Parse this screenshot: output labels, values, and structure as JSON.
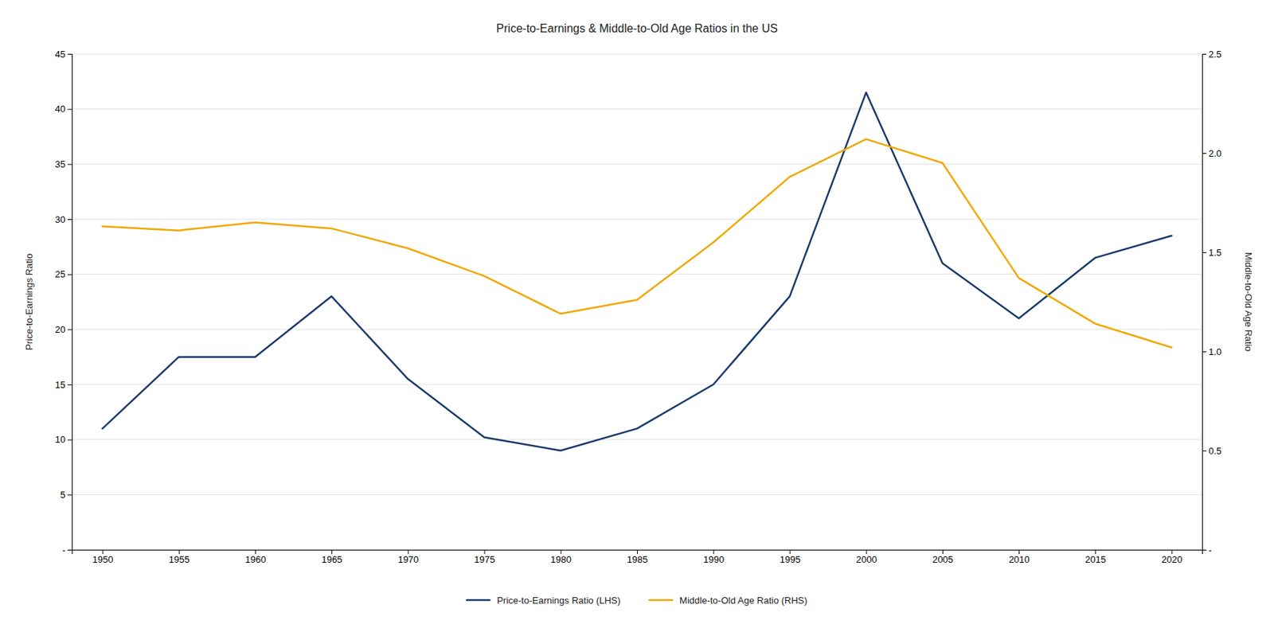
{
  "chart_data": {
    "type": "line",
    "title": "Price-to-Earnings & Middle-to-Old Age Ratios in the US",
    "x": [
      1950,
      1955,
      1960,
      1965,
      1970,
      1975,
      1980,
      1985,
      1990,
      1995,
      2000,
      2005,
      2010,
      2015,
      2020
    ],
    "series": [
      {
        "name": "Price-to-Earnings Ratio (LHS)",
        "color": "#1a3a6b",
        "values": [
          11.0,
          17.5,
          17.5,
          23.0,
          15.5,
          10.2,
          9.0,
          11.0,
          15.0,
          23.0,
          41.5,
          26.0,
          21.0,
          26.5,
          28.5
        ]
      },
      {
        "name": "Middle-to-Old Age Ratio (RHS)",
        "color": "#f0a800",
        "axis": "y2",
        "values": [
          1.63,
          1.61,
          1.65,
          1.62,
          1.52,
          1.38,
          1.19,
          1.26,
          1.55,
          1.88,
          2.07,
          1.95,
          1.37,
          1.14,
          1.02
        ]
      }
    ],
    "ylabel": "Price-to-Earnings Ratio",
    "y2label": "Middle-to-Old Age Ratio",
    "xlim": [
      1948,
      2022
    ],
    "xticks": [
      1950,
      1955,
      1960,
      1965,
      1970,
      1975,
      1980,
      1985,
      1990,
      1995,
      2000,
      2005,
      2010,
      2015,
      2020
    ],
    "ylim": [
      0,
      45
    ],
    "yticks": [
      {
        "value": 0,
        "label": "-"
      },
      5,
      10,
      15,
      20,
      25,
      30,
      35,
      40,
      45
    ],
    "y2lim": [
      0,
      2.5
    ],
    "y2ticks": [
      {
        "value": 0,
        "label": "-"
      },
      0.5,
      {
        "value": 1,
        "label": "1.0"
      },
      1.5,
      {
        "value": 2,
        "label": "2.0"
      },
      2.5
    ],
    "grid": true,
    "legend": "bottom"
  }
}
